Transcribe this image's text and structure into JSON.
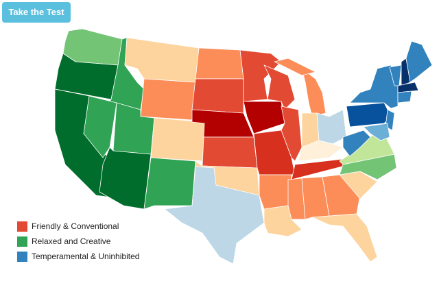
{
  "button": {
    "label": "Take the Test"
  },
  "legend": [
    {
      "label": "Friendly & Conventional",
      "color": "#e34a33"
    },
    {
      "label": "Relaxed and Creative",
      "color": "#31a354"
    },
    {
      "label": "Temperamental & Uninhibited",
      "color": "#3182bd"
    }
  ]
}
